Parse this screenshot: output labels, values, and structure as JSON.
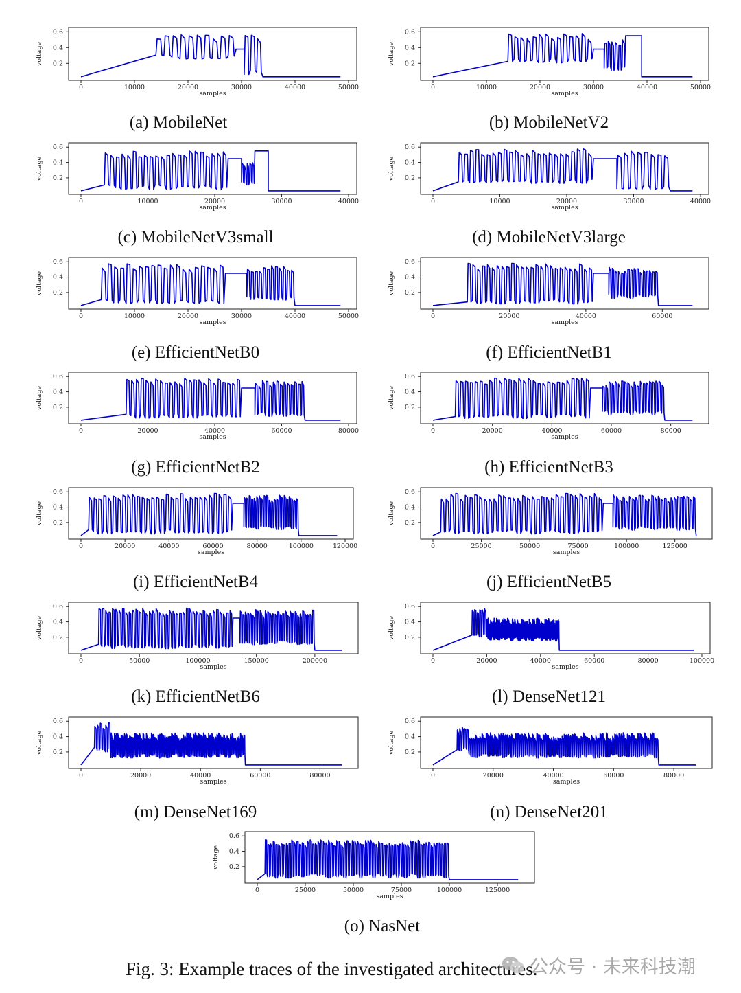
{
  "figure": {
    "caption": "Fig. 3: Example traces of the investigated architectures.",
    "watermark": "公众号 · 未来科技潮"
  },
  "chart_data": [
    {
      "type": "line",
      "id": "a",
      "caption": "(a) MobileNet",
      "xlabel": "samples",
      "ylabel": "voltage",
      "xlim": [
        0,
        50000
      ],
      "ylim": [
        0.02,
        0.62
      ],
      "xticks": [
        0,
        10000,
        20000,
        30000,
        40000,
        50000
      ],
      "yticks": [
        0.2,
        0.4,
        0.6
      ],
      "series_color": "#0000cc",
      "baseline": 0.03,
      "segments": [
        {
          "x0": 14000,
          "x1": 29000,
          "kind": "osc",
          "lo": 0.25,
          "hi": 0.58,
          "n": 10
        },
        {
          "x0": 29000,
          "x1": 30500,
          "kind": "flat",
          "lo": 0.38
        },
        {
          "x0": 30500,
          "x1": 34000,
          "kind": "osc",
          "lo": 0.05,
          "hi": 0.56,
          "n": 3
        }
      ]
    },
    {
      "type": "line",
      "id": "b",
      "caption": "(b) MobileNetV2",
      "xlabel": "samples",
      "ylabel": "voltage",
      "xlim": [
        0,
        50000
      ],
      "ylim": [
        0.02,
        0.62
      ],
      "xticks": [
        0,
        10000,
        20000,
        30000,
        40000,
        50000
      ],
      "yticks": [
        0.2,
        0.4,
        0.6
      ],
      "series_color": "#0000cc",
      "baseline": 0.03,
      "segments": [
        {
          "x0": 14000,
          "x1": 30000,
          "kind": "osc",
          "lo": 0.2,
          "hi": 0.58,
          "n": 14
        },
        {
          "x0": 30000,
          "x1": 32000,
          "kind": "flat",
          "lo": 0.38
        },
        {
          "x0": 32000,
          "x1": 36000,
          "kind": "osc",
          "lo": 0.1,
          "hi": 0.5,
          "n": 6
        },
        {
          "x0": 36000,
          "x1": 39000,
          "kind": "flat",
          "lo": 0.55
        }
      ]
    },
    {
      "type": "line",
      "id": "c",
      "caption": "(c) MobileNetV3small",
      "xlabel": "samples",
      "ylabel": "voltage",
      "xlim": [
        0,
        40000
      ],
      "ylim": [
        0.02,
        0.62
      ],
      "xticks": [
        0,
        10000,
        20000,
        30000,
        40000
      ],
      "yticks": [
        0.2,
        0.4,
        0.6
      ],
      "series_color": "#0000cc",
      "baseline": 0.03,
      "segments": [
        {
          "x0": 3500,
          "x1": 22000,
          "kind": "osc",
          "lo": 0.05,
          "hi": 0.55,
          "n": 22
        },
        {
          "x0": 22000,
          "x1": 24000,
          "kind": "flat",
          "lo": 0.45
        },
        {
          "x0": 24000,
          "x1": 26000,
          "kind": "osc",
          "lo": 0.1,
          "hi": 0.4,
          "n": 5
        },
        {
          "x0": 26000,
          "x1": 28000,
          "kind": "flat",
          "lo": 0.55
        }
      ]
    },
    {
      "type": "line",
      "id": "d",
      "caption": "(d) MobileNetV3large",
      "xlabel": "samples",
      "ylabel": "voltage",
      "xlim": [
        0,
        40000
      ],
      "ylim": [
        0.02,
        0.62
      ],
      "xticks": [
        0,
        10000,
        20000,
        30000,
        40000
      ],
      "yticks": [
        0.2,
        0.4,
        0.6
      ],
      "series_color": "#0000cc",
      "baseline": 0.03,
      "segments": [
        {
          "x0": 3800,
          "x1": 24000,
          "kind": "osc",
          "lo": 0.12,
          "hi": 0.58,
          "n": 24
        },
        {
          "x0": 24000,
          "x1": 27500,
          "kind": "flat",
          "lo": 0.45
        },
        {
          "x0": 27500,
          "x1": 35500,
          "kind": "osc",
          "lo": 0.05,
          "hi": 0.55,
          "n": 8
        }
      ]
    },
    {
      "type": "line",
      "id": "e",
      "caption": "(e) EfficientNetB0",
      "xlabel": "samples",
      "ylabel": "voltage",
      "xlim": [
        0,
        50000
      ],
      "ylim": [
        0.02,
        0.62
      ],
      "xticks": [
        0,
        10000,
        20000,
        30000,
        40000,
        50000
      ],
      "yticks": [
        0.2,
        0.4,
        0.6
      ],
      "series_color": "#0000cc",
      "baseline": 0.03,
      "segments": [
        {
          "x0": 3800,
          "x1": 27000,
          "kind": "osc",
          "lo": 0.05,
          "hi": 0.58,
          "n": 20
        },
        {
          "x0": 27000,
          "x1": 31000,
          "kind": "flat",
          "lo": 0.45
        },
        {
          "x0": 31000,
          "x1": 40000,
          "kind": "osc",
          "lo": 0.1,
          "hi": 0.55,
          "n": 12
        }
      ]
    },
    {
      "type": "line",
      "id": "f",
      "caption": "(f) EfficientNetB1",
      "xlabel": "samples",
      "ylabel": "voltage",
      "xlim": [
        0,
        70000
      ],
      "ylim": [
        0.02,
        0.62
      ],
      "xticks": [
        0,
        20000,
        40000,
        60000
      ],
      "yticks": [
        0.2,
        0.4,
        0.6
      ],
      "series_color": "#0000cc",
      "baseline": 0.03,
      "segments": [
        {
          "x0": 9000,
          "x1": 42000,
          "kind": "osc",
          "lo": 0.05,
          "hi": 0.58,
          "n": 26
        },
        {
          "x0": 42000,
          "x1": 46000,
          "kind": "flat",
          "lo": 0.45
        },
        {
          "x0": 46000,
          "x1": 59000,
          "kind": "osc",
          "lo": 0.12,
          "hi": 0.53,
          "n": 16
        }
      ]
    },
    {
      "type": "line",
      "id": "g",
      "caption": "(g) EfficientNetB2",
      "xlabel": "samples",
      "ylabel": "voltage",
      "xlim": [
        0,
        80000
      ],
      "ylim": [
        0.02,
        0.62
      ],
      "xticks": [
        0,
        20000,
        40000,
        60000,
        80000
      ],
      "yticks": [
        0.2,
        0.4,
        0.6
      ],
      "series_color": "#0000cc",
      "baseline": 0.03,
      "segments": [
        {
          "x0": 13500,
          "x1": 48000,
          "kind": "osc",
          "lo": 0.05,
          "hi": 0.58,
          "n": 24
        },
        {
          "x0": 48000,
          "x1": 52000,
          "kind": "flat",
          "lo": 0.45
        },
        {
          "x0": 52000,
          "x1": 67000,
          "kind": "osc",
          "lo": 0.08,
          "hi": 0.55,
          "n": 14
        }
      ]
    },
    {
      "type": "line",
      "id": "h",
      "caption": "(h) EfficientNetB3",
      "xlabel": "samples",
      "ylabel": "voltage",
      "xlim": [
        0,
        90000
      ],
      "ylim": [
        0.02,
        0.62
      ],
      "xticks": [
        0,
        20000,
        40000,
        60000,
        80000
      ],
      "yticks": [
        0.2,
        0.4,
        0.6
      ],
      "series_color": "#0000cc",
      "baseline": 0.03,
      "segments": [
        {
          "x0": 7500,
          "x1": 53000,
          "kind": "osc",
          "lo": 0.05,
          "hi": 0.58,
          "n": 28
        },
        {
          "x0": 53000,
          "x1": 57000,
          "kind": "flat",
          "lo": 0.45
        },
        {
          "x0": 57000,
          "x1": 78000,
          "kind": "osc",
          "lo": 0.1,
          "hi": 0.55,
          "n": 20
        }
      ]
    },
    {
      "type": "line",
      "id": "i",
      "caption": "(i) EfficientNetB4",
      "xlabel": "samples",
      "ylabel": "voltage",
      "xlim": [
        0,
        120000
      ],
      "ylim": [
        0.02,
        0.62
      ],
      "xticks": [
        0,
        20000,
        40000,
        60000,
        80000,
        100000,
        120000
      ],
      "yticks": [
        0.2,
        0.4,
        0.6
      ],
      "series_color": "#0000cc",
      "baseline": 0.03,
      "segments": [
        {
          "x0": 3500,
          "x1": 69000,
          "kind": "osc",
          "lo": 0.05,
          "hi": 0.58,
          "n": 30
        },
        {
          "x0": 69000,
          "x1": 74000,
          "kind": "flat",
          "lo": 0.45
        },
        {
          "x0": 74000,
          "x1": 99000,
          "kind": "osc",
          "lo": 0.1,
          "hi": 0.56,
          "n": 22
        }
      ]
    },
    {
      "type": "line",
      "id": "j",
      "caption": "(j) EfficientNetB5",
      "xlabel": "samples",
      "ylabel": "voltage",
      "xlim": [
        0,
        140000
      ],
      "ylim": [
        0.02,
        0.62
      ],
      "xticks": [
        0,
        25000,
        50000,
        75000,
        100000,
        125000
      ],
      "yticks": [
        0.2,
        0.4,
        0.6
      ],
      "series_color": "#0000cc",
      "baseline": 0.03,
      "segments": [
        {
          "x0": 4000,
          "x1": 88000,
          "kind": "osc",
          "lo": 0.05,
          "hi": 0.58,
          "n": 34
        },
        {
          "x0": 88000,
          "x1": 93000,
          "kind": "flat",
          "lo": 0.45
        },
        {
          "x0": 93000,
          "x1": 136000,
          "kind": "osc",
          "lo": 0.1,
          "hi": 0.56,
          "n": 26
        }
      ]
    },
    {
      "type": "line",
      "id": "k",
      "caption": "(k) EfficientNetB6",
      "xlabel": "samples",
      "ylabel": "voltage",
      "xlim": [
        0,
        230000
      ],
      "ylim": [
        0.02,
        0.62
      ],
      "xticks": [
        0,
        50000,
        100000,
        150000,
        200000
      ],
      "yticks": [
        0.2,
        0.4,
        0.6
      ],
      "series_color": "#0000cc",
      "baseline": 0.03,
      "segments": [
        {
          "x0": 15000,
          "x1": 130000,
          "kind": "osc",
          "lo": 0.05,
          "hi": 0.58,
          "n": 40
        },
        {
          "x0": 130000,
          "x1": 136000,
          "kind": "flat",
          "lo": 0.45
        },
        {
          "x0": 136000,
          "x1": 200000,
          "kind": "osc",
          "lo": 0.1,
          "hi": 0.56,
          "n": 30
        }
      ]
    },
    {
      "type": "line",
      "id": "l",
      "caption": "(l) DenseNet121",
      "xlabel": "samples",
      "ylabel": "voltage",
      "xlim": [
        0,
        100000
      ],
      "ylim": [
        0.02,
        0.62
      ],
      "xticks": [
        0,
        20000,
        40000,
        60000,
        80000,
        100000
      ],
      "yticks": [
        0.2,
        0.4,
        0.6
      ],
      "series_color": "#0000cc",
      "baseline": 0.03,
      "segments": [
        {
          "x0": 14500,
          "x1": 20000,
          "kind": "osc",
          "lo": 0.2,
          "hi": 0.58,
          "n": 6
        },
        {
          "x0": 20000,
          "x1": 47000,
          "kind": "dense",
          "lo": 0.15,
          "hi": 0.45,
          "n": 60
        }
      ]
    },
    {
      "type": "line",
      "id": "m",
      "caption": "(m) DenseNet169",
      "xlabel": "samples",
      "ylabel": "voltage",
      "xlim": [
        0,
        90000
      ],
      "ylim": [
        0.02,
        0.62
      ],
      "xticks": [
        0,
        20000,
        40000,
        60000,
        80000
      ],
      "yticks": [
        0.2,
        0.4,
        0.6
      ],
      "series_color": "#0000cc",
      "baseline": 0.03,
      "segments": [
        {
          "x0": 4500,
          "x1": 10000,
          "kind": "osc",
          "lo": 0.2,
          "hi": 0.58,
          "n": 6
        },
        {
          "x0": 10000,
          "x1": 55000,
          "kind": "dense",
          "lo": 0.12,
          "hi": 0.45,
          "n": 80
        }
      ]
    },
    {
      "type": "line",
      "id": "n",
      "caption": "(n) DenseNet201",
      "xlabel": "samples",
      "ylabel": "voltage",
      "xlim": [
        0,
        90000
      ],
      "ylim": [
        0.02,
        0.62
      ],
      "xticks": [
        0,
        20000,
        40000,
        60000,
        80000
      ],
      "yticks": [
        0.2,
        0.4,
        0.6
      ],
      "series_color": "#0000cc",
      "baseline": 0.03,
      "segments": [
        {
          "x0": 8000,
          "x1": 12000,
          "kind": "osc",
          "lo": 0.2,
          "hi": 0.55,
          "n": 5
        },
        {
          "x0": 12000,
          "x1": 75000,
          "kind": "dense",
          "lo": 0.12,
          "hi": 0.45,
          "n": 90
        }
      ]
    },
    {
      "type": "line",
      "id": "o",
      "caption": "(o) NasNet",
      "xlabel": "samples",
      "ylabel": "voltage",
      "xlim": [
        0,
        140000
      ],
      "ylim": [
        0.02,
        0.62
      ],
      "xticks": [
        0,
        25000,
        50000,
        75000,
        100000,
        125000
      ],
      "yticks": [
        0.2,
        0.4,
        0.6
      ],
      "series_color": "#0000cc",
      "baseline": 0.03,
      "segments": [
        {
          "x0": 4000,
          "x1": 100000,
          "kind": "osc",
          "lo": 0.05,
          "hi": 0.55,
          "n": 70
        }
      ]
    }
  ]
}
